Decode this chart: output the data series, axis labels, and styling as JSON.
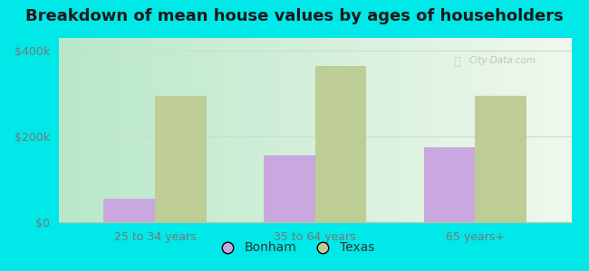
{
  "title": "Breakdown of mean house values by ages of householders",
  "categories": [
    "25 to 34 years",
    "35 to 64 years",
    "65 years+"
  ],
  "bonham_values": [
    55000,
    155000,
    175000
  ],
  "texas_values": [
    295000,
    365000,
    295000
  ],
  "bonham_color": "#c9a8e0",
  "texas_color": "#becd96",
  "background_color": "#00e8e8",
  "plot_bg_left": "#b8e8c8",
  "plot_bg_right": "#f0f8ee",
  "ylim": [
    0,
    430000
  ],
  "yticks": [
    0,
    200000,
    400000
  ],
  "ytick_labels": [
    "$0",
    "$200k",
    "$400k"
  ],
  "legend_labels": [
    "Bonham",
    "Texas"
  ],
  "title_fontsize": 13,
  "bar_width": 0.32,
  "watermark": "City-Data.com",
  "grid_color": "#ccddcc",
  "tick_color": "#777777",
  "spine_color": "#aaccaa"
}
